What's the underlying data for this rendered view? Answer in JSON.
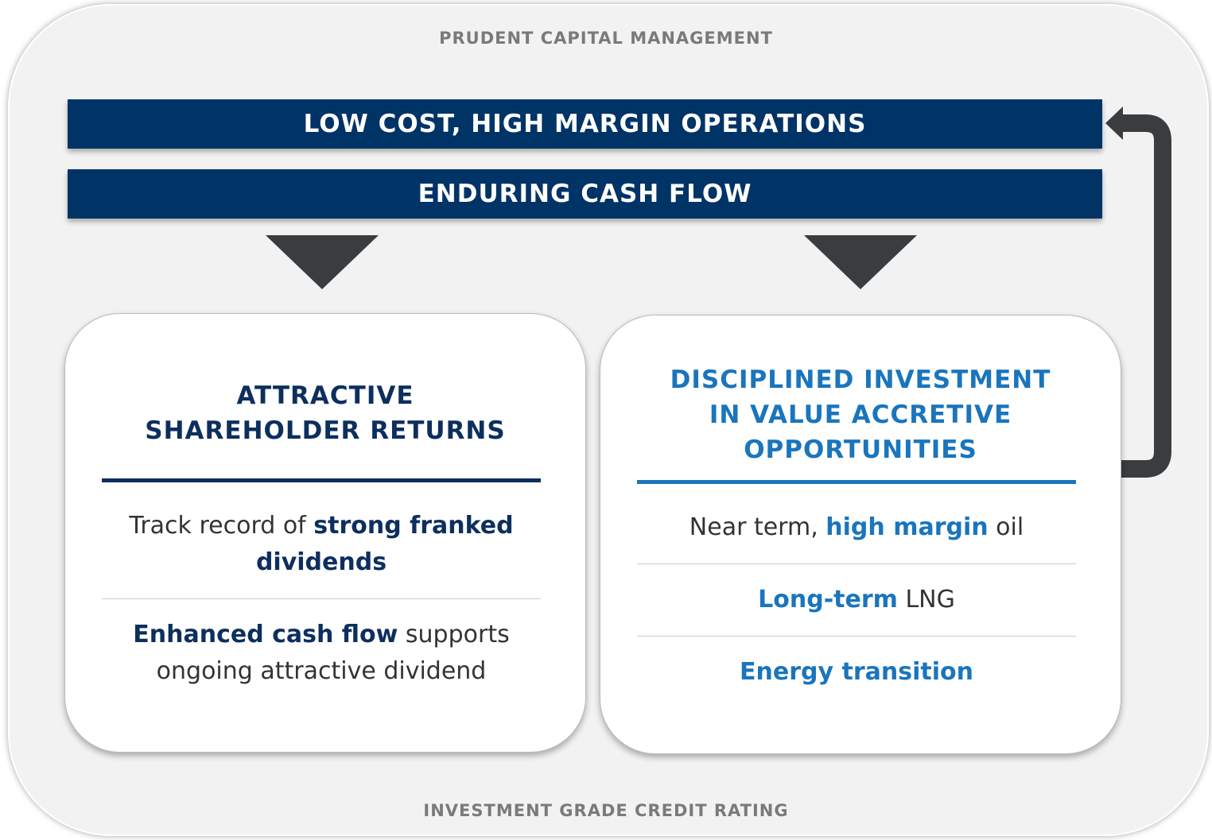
{
  "frame": {
    "top_label": "PRUDENT CAPITAL MANAGEMENT",
    "bottom_label": "INVESTMENT GRADE CREDIT RATING"
  },
  "bars": [
    "LOW COST, HIGH MARGIN OPERATIONS",
    "ENDURING CASH FLOW"
  ],
  "cards": [
    {
      "title": "ATTRACTIVE SHAREHOLDER RETURNS",
      "color": "#0d2f5e",
      "items": [
        [
          {
            "text": "Track record of ",
            "bold": false
          },
          {
            "text": "strong franked dividends",
            "bold": true
          }
        ],
        [
          {
            "text": "Enhanced cash flow",
            "bold": true
          },
          {
            "text": " supports ongoing attractive dividend",
            "bold": false
          }
        ]
      ]
    },
    {
      "title": "DISCIPLINED INVESTMENT IN VALUE ACCRETIVE OPPORTUNITIES",
      "color": "#1a75bc",
      "items": [
        [
          {
            "text": "Near term, ",
            "bold": false
          },
          {
            "text": "high margin",
            "bold": true
          },
          {
            "text": " oil",
            "bold": false
          }
        ],
        [
          {
            "text": "Long-term",
            "bold": true
          },
          {
            "text": " LNG",
            "bold": false
          }
        ],
        [
          {
            "text": "Energy transition",
            "bold": true
          }
        ]
      ]
    }
  ]
}
